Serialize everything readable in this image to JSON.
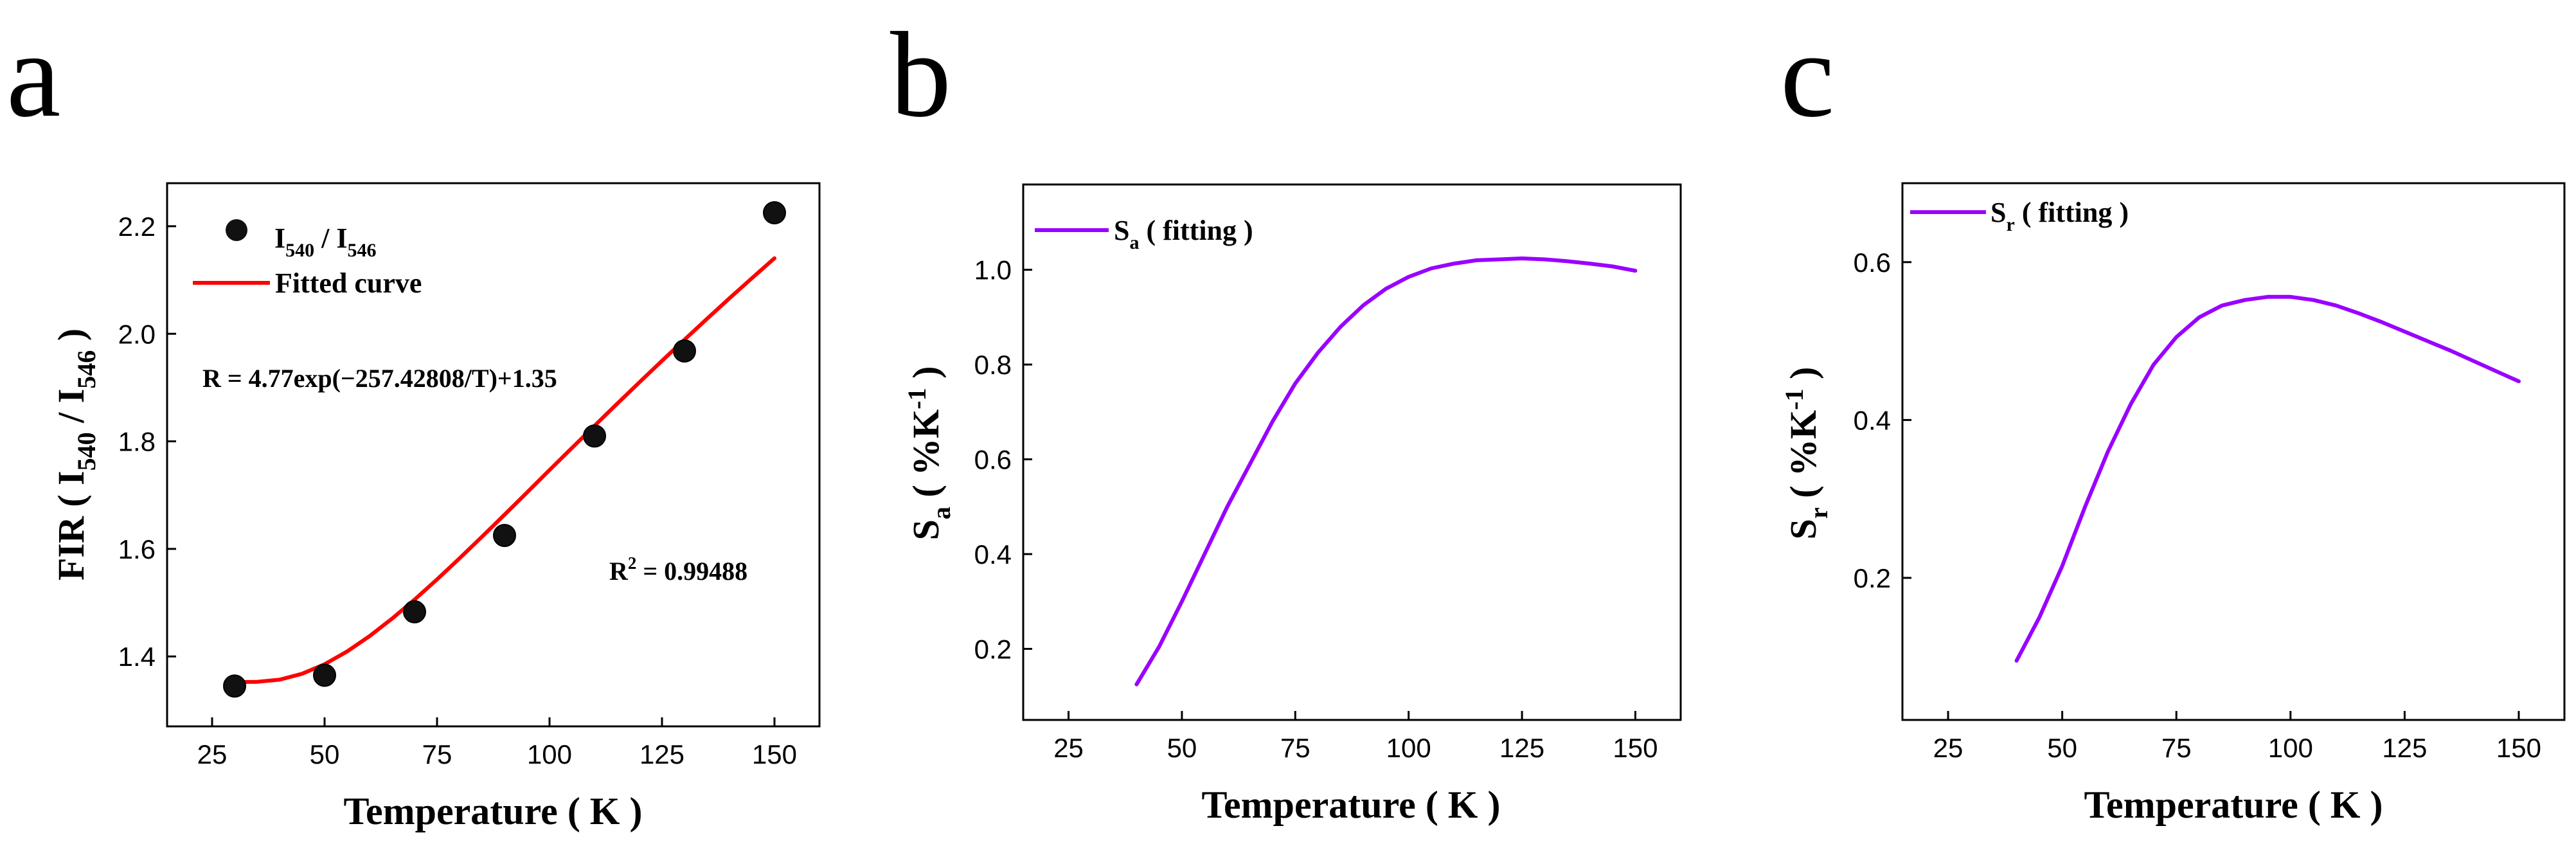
{
  "panels": [
    {
      "letter": "a"
    },
    {
      "letter": "b"
    },
    {
      "letter": "c"
    }
  ],
  "chart_data": [
    {
      "type": "scatter",
      "title": "",
      "xlabel": "Temperature ( K )",
      "ylabel": {
        "pre": "FIR ( I",
        "sub1": "540",
        "mid": " / I",
        "sub2": "546",
        "post": " )"
      },
      "xlim": [
        15,
        160
      ],
      "ylim": [
        1.27,
        2.28
      ],
      "xticks": [
        25,
        50,
        75,
        100,
        125,
        150
      ],
      "yticks": [
        1.4,
        1.6,
        1.8,
        2.0,
        2.2
      ],
      "ytick_decimals": 1,
      "series": [
        {
          "name": "I540 / I546",
          "kind": "points",
          "color": "#111111",
          "x": [
            30,
            50,
            70,
            90,
            110,
            130,
            150
          ],
          "y": [
            1.345,
            1.365,
            1.483,
            1.625,
            1.81,
            1.968,
            2.225
          ]
        },
        {
          "name": "Fitted curve",
          "kind": "line",
          "color": "#ff0000",
          "x": [
            30,
            35,
            40,
            45,
            50,
            55,
            60,
            65,
            70,
            75,
            80,
            85,
            90,
            95,
            100,
            105,
            110,
            115,
            120,
            125,
            130,
            135,
            140,
            145,
            150
          ],
          "y": [
            1.3524,
            1.3528,
            1.3568,
            1.3678,
            1.3855,
            1.4092,
            1.4378,
            1.4703,
            1.5057,
            1.5432,
            1.5824,
            1.6227,
            1.6636,
            1.705,
            1.7465,
            1.7878,
            1.8289,
            1.8697,
            1.91,
            1.9498,
            1.9891,
            2.0278,
            2.066,
            2.1035,
            2.1404
          ]
        }
      ],
      "legend": [
        {
          "kind": "point",
          "pre": "I",
          "sub1": "540",
          "mid": " / I",
          "sub2": "546"
        },
        {
          "kind": "line",
          "text": "Fitted curve"
        }
      ],
      "annotations": [
        {
          "text": "R = 4.77exp(−257.42808/T)+1.35"
        },
        {
          "pre": "R",
          "sup": "2",
          "post": " = 0.99488"
        }
      ]
    },
    {
      "type": "line",
      "title": "",
      "xlabel": "Temperature ( K )",
      "ylabel": {
        "pre": "S",
        "sub": "a",
        "mid": " ( %K",
        "sup": "-1",
        "post": " )"
      },
      "xlim": [
        15,
        160
      ],
      "ylim": [
        0.05,
        1.18
      ],
      "xticks": [
        25,
        50,
        75,
        100,
        125,
        150
      ],
      "yticks": [
        0.2,
        0.4,
        0.6,
        0.8,
        1.0
      ],
      "ytick_decimals": 1,
      "series": [
        {
          "name": "Sa ( fitting )",
          "kind": "line",
          "color": "#9900ff",
          "x": [
            40,
            45,
            50,
            55,
            60,
            65,
            70,
            75,
            80,
            85,
            90,
            95,
            100,
            105,
            110,
            115,
            120,
            125,
            130,
            135,
            140,
            145,
            150
          ],
          "y": [
            0.125,
            0.205,
            0.3,
            0.4,
            0.5,
            0.59,
            0.68,
            0.76,
            0.825,
            0.88,
            0.925,
            0.96,
            0.985,
            1.003,
            1.013,
            1.02,
            1.022,
            1.024,
            1.022,
            1.018,
            1.013,
            1.007,
            0.998
          ]
        }
      ],
      "legend": [
        {
          "kind": "line",
          "pre": "S",
          "sub": "a",
          "post": " ( fitting )"
        }
      ],
      "annotations": []
    },
    {
      "type": "line",
      "title": "",
      "xlabel": "Temperature ( K )",
      "ylabel": {
        "pre": "S",
        "sub": "r",
        "mid": " ( %K",
        "sup": "-1",
        "post": " )"
      },
      "xlim": [
        15,
        160
      ],
      "ylim": [
        0.02,
        0.7
      ],
      "xticks": [
        25,
        50,
        75,
        100,
        125,
        150
      ],
      "yticks": [
        0.2,
        0.4,
        0.6
      ],
      "ytick_decimals": 1,
      "series": [
        {
          "name": "Sr ( fitting )",
          "kind": "line",
          "color": "#9900ff",
          "x": [
            40,
            45,
            50,
            55,
            60,
            65,
            70,
            75,
            80,
            85,
            90,
            95,
            100,
            105,
            110,
            115,
            120,
            125,
            130,
            135,
            140,
            145,
            150
          ],
          "y": [
            0.095,
            0.15,
            0.215,
            0.29,
            0.36,
            0.42,
            0.47,
            0.505,
            0.53,
            0.545,
            0.552,
            0.556,
            0.556,
            0.552,
            0.545,
            0.535,
            0.524,
            0.512,
            0.5,
            0.488,
            0.475,
            0.462,
            0.449
          ]
        }
      ],
      "legend": [
        {
          "kind": "line",
          "pre": "S",
          "sub": "r",
          "post": " ( fitting )"
        }
      ],
      "annotations": []
    }
  ]
}
